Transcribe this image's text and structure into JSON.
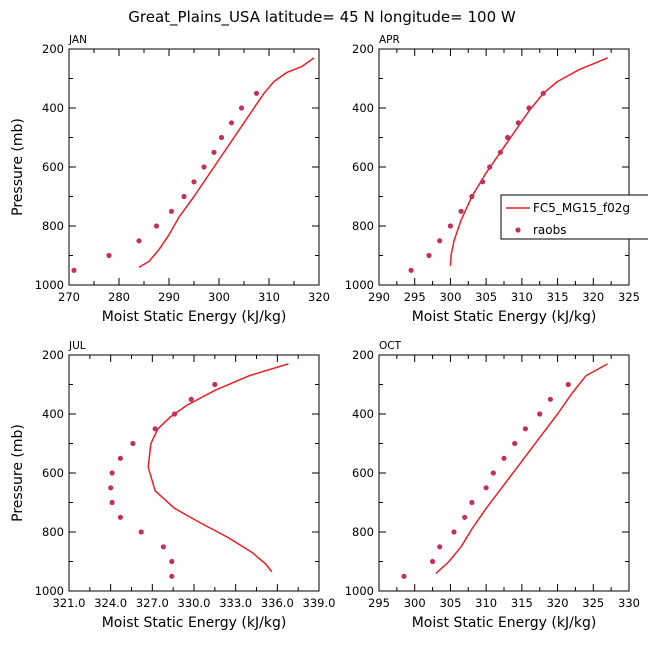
{
  "title": "Great_Plains_USA  latitude= 45 N longitude= 100 W",
  "colors": {
    "model": "#ee1c25",
    "obs": "#c2305f",
    "axis": "#000000"
  },
  "legend": {
    "model_label": "FC5_MG15_f02g",
    "obs_label": "raobs",
    "placement": "right-middle"
  },
  "chart_data": [
    {
      "type": "line",
      "label": "JAN",
      "xlabel": "Moist Static Energy (kJ/kg)",
      "ylabel": "Pressure (mb)",
      "xlim": [
        270,
        320
      ],
      "ylim": [
        1000,
        200
      ],
      "xticks": [
        270,
        280,
        290,
        300,
        310,
        320
      ],
      "xtick_labels": [
        "270",
        "280",
        "290",
        "300",
        "310",
        "320"
      ],
      "yticks": [
        200,
        400,
        600,
        800,
        1000
      ],
      "ytick_labels": [
        "200",
        "400",
        "600",
        "800",
        "1000"
      ],
      "show_ylabel": true,
      "series": [
        {
          "name": "FC5_MG15_f02g",
          "kind": "line",
          "x": [
            284,
            286,
            288,
            290,
            292,
            295,
            299,
            303,
            307,
            309,
            311,
            313.5,
            316.5,
            319
          ],
          "y": [
            940,
            920,
            880,
            830,
            770,
            700,
            600,
            500,
            400,
            350,
            310,
            280,
            260,
            230
          ]
        },
        {
          "name": "raobs",
          "kind": "points",
          "x": [
            271,
            278,
            284,
            287.5,
            290.5,
            293,
            295,
            297,
            299,
            300.5,
            302.5,
            304.5,
            307.5
          ],
          "y": [
            950,
            900,
            850,
            800,
            750,
            700,
            650,
            600,
            550,
            500,
            450,
            400,
            350
          ]
        }
      ]
    },
    {
      "type": "line",
      "label": "APR",
      "xlabel": "Moist Static Energy (kJ/kg)",
      "ylabel": "Pressure (mb)",
      "xlim": [
        290,
        325
      ],
      "ylim": [
        1000,
        200
      ],
      "xticks": [
        290,
        295,
        300,
        305,
        310,
        315,
        320,
        325
      ],
      "xtick_labels": [
        "290",
        "295",
        "300",
        "305",
        "310",
        "315",
        "320",
        "325"
      ],
      "yticks": [
        200,
        400,
        600,
        800,
        1000
      ],
      "ytick_labels": [
        "200",
        "400",
        "600",
        "800",
        "1000"
      ],
      "show_ylabel": false,
      "series": [
        {
          "name": "FC5_MG15_f02g",
          "kind": "line",
          "x": [
            300,
            300.1,
            300.5,
            301.5,
            303,
            305,
            307,
            309,
            311,
            313,
            315,
            318,
            322
          ],
          "y": [
            935,
            900,
            850,
            780,
            700,
            620,
            550,
            480,
            410,
            350,
            310,
            270,
            230
          ]
        },
        {
          "name": "raobs",
          "kind": "points",
          "x": [
            294.5,
            297,
            298.5,
            300,
            301.5,
            303,
            304.5,
            305.5,
            307,
            308,
            309.5,
            311,
            313
          ],
          "y": [
            950,
            900,
            850,
            800,
            750,
            700,
            650,
            600,
            550,
            500,
            450,
            400,
            350
          ]
        }
      ]
    },
    {
      "type": "line",
      "label": "JUL",
      "xlabel": "Moist Static Energy (kJ/kg)",
      "ylabel": "Pressure (mb)",
      "xlim": [
        321,
        339
      ],
      "ylim": [
        1000,
        200
      ],
      "xticks": [
        321,
        324,
        327,
        330,
        333,
        336,
        339
      ],
      "xtick_labels": [
        "321.0",
        "324.0",
        "327.0",
        "330.0",
        "333.0",
        "336.0",
        "339.0"
      ],
      "yticks": [
        200,
        400,
        600,
        800,
        1000
      ],
      "ytick_labels": [
        "200",
        "400",
        "600",
        "800",
        "1000"
      ],
      "show_ylabel": true,
      "series": [
        {
          "name": "FC5_MG15_f02g",
          "kind": "line",
          "x": [
            335.6,
            335.2,
            334.2,
            332.5,
            330.5,
            328.6,
            327.2,
            326.7,
            326.9,
            327.4,
            328.3,
            329.5,
            331.5,
            334,
            336.8
          ],
          "y": [
            935,
            910,
            870,
            820,
            770,
            720,
            660,
            580,
            500,
            450,
            410,
            370,
            320,
            270,
            230
          ]
        },
        {
          "name": "raobs",
          "kind": "points",
          "x": [
            328.4,
            328.4,
            327.8,
            326.2,
            324.7,
            324.1,
            324.0,
            324.1,
            324.7,
            325.6,
            327.2,
            328.6,
            329.8,
            331.5
          ],
          "y": [
            950,
            900,
            850,
            800,
            750,
            700,
            650,
            600,
            550,
            500,
            450,
            400,
            350,
            300
          ]
        }
      ]
    },
    {
      "type": "line",
      "label": "OCT",
      "xlabel": "Moist Static Energy (kJ/kg)",
      "ylabel": "Pressure (mb)",
      "xlim": [
        295,
        330
      ],
      "ylim": [
        1000,
        200
      ],
      "xticks": [
        295,
        300,
        305,
        310,
        315,
        320,
        325,
        330
      ],
      "xtick_labels": [
        "295",
        "300",
        "305",
        "310",
        "315",
        "320",
        "325",
        "330"
      ],
      "yticks": [
        200,
        400,
        600,
        800,
        1000
      ],
      "ytick_labels": [
        "200",
        "400",
        "600",
        "800",
        "1000"
      ],
      "show_ylabel": false,
      "series": [
        {
          "name": "FC5_MG15_f02g",
          "kind": "line",
          "x": [
            303,
            304.8,
            306.5,
            308,
            310,
            312.5,
            315,
            317.5,
            320,
            322,
            324,
            327
          ],
          "y": [
            940,
            900,
            850,
            790,
            720,
            640,
            560,
            480,
            400,
            330,
            270,
            230
          ]
        },
        {
          "name": "raobs",
          "kind": "points",
          "x": [
            298.5,
            302.5,
            303.5,
            305.5,
            307,
            308,
            310,
            311,
            312.5,
            314,
            315.5,
            317.5,
            319,
            321.5
          ],
          "y": [
            950,
            900,
            850,
            800,
            750,
            700,
            650,
            600,
            550,
            500,
            450,
            400,
            350,
            300
          ]
        }
      ]
    }
  ]
}
